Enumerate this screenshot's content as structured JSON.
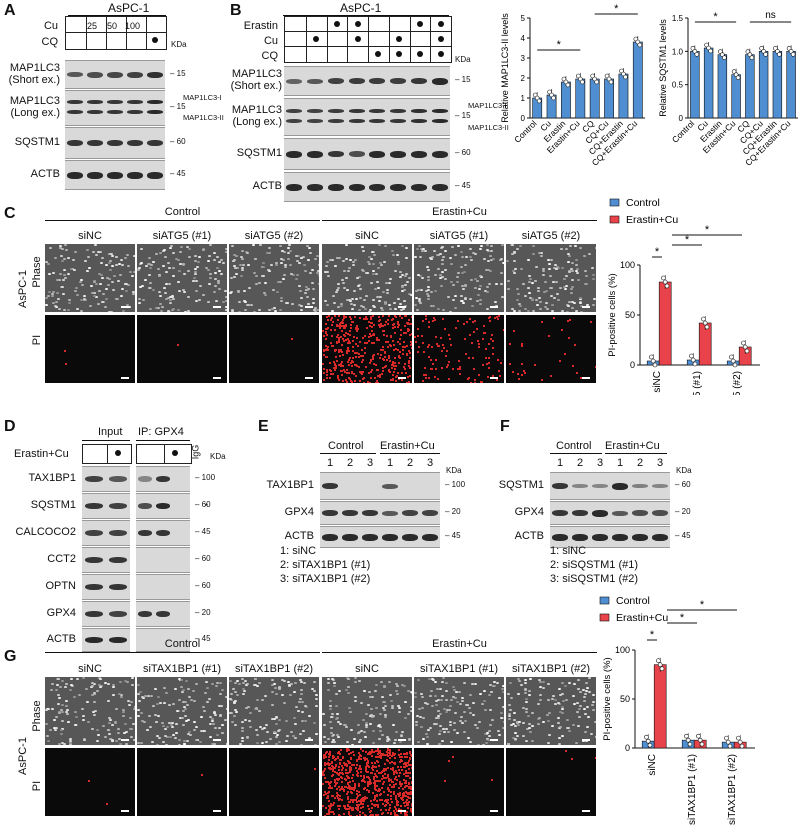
{
  "panels": {
    "A": {
      "letter": "A",
      "cell_line": "AsPC-1",
      "row_labels": [
        "Cu",
        "CQ"
      ],
      "cu_doses": [
        "25",
        "50",
        "100"
      ],
      "kda_label": "KDa",
      "blots": [
        {
          "label": "MAP1LC3\n(Short ex.)",
          "mw": "15"
        },
        {
          "label": "MAP1LC3\n(Long ex.)",
          "mw": "15",
          "forms": [
            "MAP1LC3-I",
            "MAP1LC3-II"
          ]
        },
        {
          "label": "SQSTM1",
          "mw": "60"
        },
        {
          "label": "ACTB",
          "mw": "45"
        }
      ]
    },
    "B": {
      "letter": "B",
      "cell_line": "AsPC-1",
      "row_labels": [
        "Erastin",
        "Cu",
        "CQ"
      ],
      "kda_label": "KDa",
      "blots": [
        {
          "label": "MAP1LC3\n(Short ex.)",
          "mw": "15"
        },
        {
          "label": "MAP1LC3\n(Long ex.)",
          "mw": "15",
          "forms": [
            "MAP1LC3-I",
            "MAP1LC3-II"
          ]
        },
        {
          "label": "SQSTM1",
          "mw": "60"
        },
        {
          "label": "ACTB",
          "mw": "45"
        }
      ]
    },
    "C": {
      "letter": "C",
      "cell_line": "AsPC-1",
      "groups": [
        "Control",
        "Erastin+Cu"
      ],
      "conditions": [
        "siNC",
        "siATG5 (#1)",
        "siATG5 (#2)"
      ],
      "row_labels": [
        "Phase",
        "PI"
      ],
      "legend": [
        "Control",
        "Erastin+Cu"
      ]
    },
    "D": {
      "letter": "D",
      "treatment": "Erastin+Cu",
      "input_label": "Input",
      "ip_label": "IP: GPX4",
      "igg_label": "IgG",
      "kda_label": "KDa",
      "asterisk": "*",
      "blots": [
        {
          "label": "TAX1BP1",
          "mw": "100"
        },
        {
          "label": "SQSTM1",
          "mw": "60"
        },
        {
          "label": "CALCOCO2",
          "mw": "45"
        },
        {
          "label": "CCT2",
          "mw": "60"
        },
        {
          "label": "OPTN",
          "mw": "60"
        },
        {
          "label": "GPX4",
          "mw": "20"
        },
        {
          "label": "ACTB",
          "mw": "45"
        }
      ]
    },
    "E": {
      "letter": "E",
      "groups": [
        "Control",
        "Erastin+Cu"
      ],
      "lanes": [
        "1",
        "2",
        "3",
        "1",
        "2",
        "3"
      ],
      "kda_label": "KDa",
      "blots": [
        {
          "label": "TAX1BP1",
          "mw": "100"
        },
        {
          "label": "GPX4",
          "mw": "20"
        },
        {
          "label": "ACTB",
          "mw": "45"
        }
      ],
      "key": [
        "1: siNC",
        "2: siTAX1BP1 (#1)",
        "3: siTAX1BP1 (#2)"
      ]
    },
    "F": {
      "letter": "F",
      "groups": [
        "Control",
        "Erastin+Cu"
      ],
      "lanes": [
        "1",
        "2",
        "3",
        "1",
        "2",
        "3"
      ],
      "kda_label": "KDa",
      "blots": [
        {
          "label": "SQSTM1",
          "mw": "60"
        },
        {
          "label": "GPX4",
          "mw": "20"
        },
        {
          "label": "ACTB",
          "mw": "45"
        }
      ],
      "key": [
        "1: siNC",
        "2: siSQSTM1 (#1)",
        "3: siSQSTM1 (#2)"
      ]
    },
    "G": {
      "letter": "G",
      "cell_line": "AsPC-1",
      "groups": [
        "Control",
        "Erastin+Cu"
      ],
      "conditions": [
        "siNC",
        "siTAX1BP1 (#1)",
        "siTAX1BP1 (#2)"
      ],
      "row_labels": [
        "Phase",
        "PI"
      ],
      "legend": [
        "Control",
        "Erastin+Cu"
      ]
    }
  },
  "colors": {
    "control": "#4f8fd1",
    "erastin_cu": "#e8434b",
    "pi_red": "#d92a2a"
  },
  "chart_data": [
    {
      "type": "bar",
      "ylabel": "Relative MAP1LC3-II levels",
      "categories": [
        "Control",
        "Cu",
        "Erastin",
        "Erastin+Cu",
        "CQ",
        "CQ+Cu",
        "CQ+Erastin",
        "CQ+Erastin+Cu"
      ],
      "values": [
        1.0,
        1.15,
        1.8,
        1.95,
        1.95,
        1.95,
        2.2,
        3.8
      ],
      "ylim": [
        0,
        5
      ],
      "yticks": [
        "0",
        "1",
        "2",
        "3",
        "4",
        "5"
      ],
      "significance": [
        "*",
        "*"
      ]
    },
    {
      "type": "bar",
      "ylabel": "Relative SQSTM1 levels",
      "categories": [
        "Control",
        "Cu",
        "Erastin",
        "Erastin+Cu",
        "CQ",
        "CQ+Cu",
        "CQ+Erastin",
        "CQ+Erastin+Cu"
      ],
      "values": [
        1.0,
        1.05,
        0.95,
        0.65,
        0.95,
        1.0,
        1.0,
        1.0
      ],
      "ylim": [
        0,
        1.5
      ],
      "yticks": [
        "0",
        "0.5",
        "1.0",
        "1.5"
      ],
      "significance": [
        "*",
        "ns"
      ]
    },
    {
      "type": "bar",
      "ylabel": "PI-positive cells (%)",
      "categories": [
        "siNC",
        "siATG5 (#1)",
        "siATG5 (#2)"
      ],
      "series": [
        {
          "name": "Control",
          "values": [
            4,
            5,
            4
          ]
        },
        {
          "name": "Erastin+Cu",
          "values": [
            83,
            42,
            18
          ]
        }
      ],
      "ylim": [
        0,
        100
      ],
      "yticks": [
        "0",
        "50",
        "100"
      ],
      "significance": [
        "*",
        "*",
        "*"
      ]
    },
    {
      "type": "bar",
      "ylabel": "PI-positive cells (%)",
      "categories": [
        "siNC",
        "siTAX1BP1 (#1)",
        "siTAX1BP1 (#2)"
      ],
      "series": [
        {
          "name": "Control",
          "values": [
            7,
            8,
            6
          ]
        },
        {
          "name": "Erastin+Cu",
          "values": [
            85,
            8,
            6
          ]
        }
      ],
      "ylim": [
        0,
        100
      ],
      "yticks": [
        "0",
        "50",
        "100"
      ],
      "significance": [
        "*",
        "*",
        "*"
      ]
    }
  ]
}
